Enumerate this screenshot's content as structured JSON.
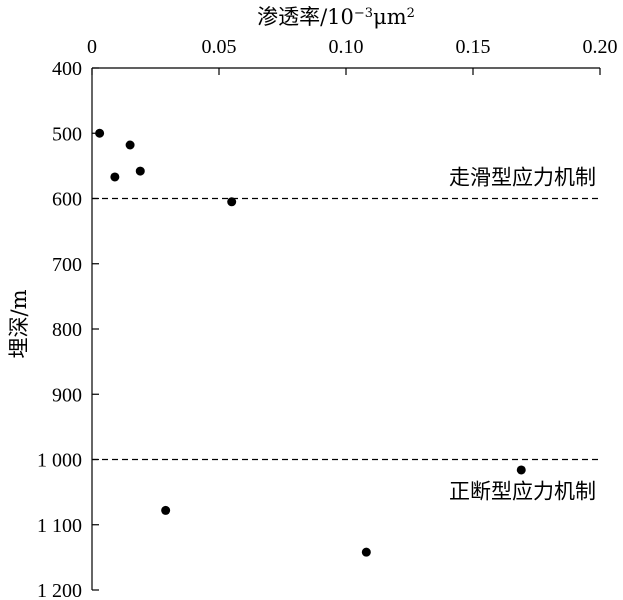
{
  "chart_data": {
    "type": "scatter",
    "title": "",
    "xlabel": {
      "base": "渗透率/10",
      "sup1": "−3",
      "unit": "μm",
      "sup2": "2"
    },
    "ylabel": "埋深/m",
    "x_axis_position": "top",
    "y_axis_inverted": true,
    "xlim": [
      0,
      0.2
    ],
    "ylim": [
      400,
      1200
    ],
    "x_ticks": [
      {
        "value": 0,
        "label": "0"
      },
      {
        "value": 0.05,
        "label": "0.05"
      },
      {
        "value": 0.1,
        "label": "0.10"
      },
      {
        "value": 0.15,
        "label": "0.15"
      },
      {
        "value": 0.2,
        "label": "0.20"
      }
    ],
    "y_ticks": [
      {
        "value": 400,
        "label": "400"
      },
      {
        "value": 500,
        "label": "500"
      },
      {
        "value": 600,
        "label": "600"
      },
      {
        "value": 700,
        "label": "700"
      },
      {
        "value": 800,
        "label": "800"
      },
      {
        "value": 900,
        "label": "900"
      },
      {
        "value": 1000,
        "label": "1 000"
      },
      {
        "value": 1100,
        "label": "1 100"
      },
      {
        "value": 1200,
        "label": "1 200"
      }
    ],
    "grid": false,
    "points": [
      {
        "x": 0.003,
        "y": 500
      },
      {
        "x": 0.009,
        "y": 567
      },
      {
        "x": 0.015,
        "y": 518
      },
      {
        "x": 0.019,
        "y": 558
      },
      {
        "x": 0.055,
        "y": 605
      },
      {
        "x": 0.029,
        "y": 1078
      },
      {
        "x": 0.108,
        "y": 1142
      },
      {
        "x": 0.169,
        "y": 1016
      }
    ],
    "reference_lines": [
      {
        "y": 600,
        "label": "走滑型应力机制",
        "label_side": "above"
      },
      {
        "y": 1000,
        "label": "正断型应力机制",
        "label_side": "below"
      }
    ]
  }
}
